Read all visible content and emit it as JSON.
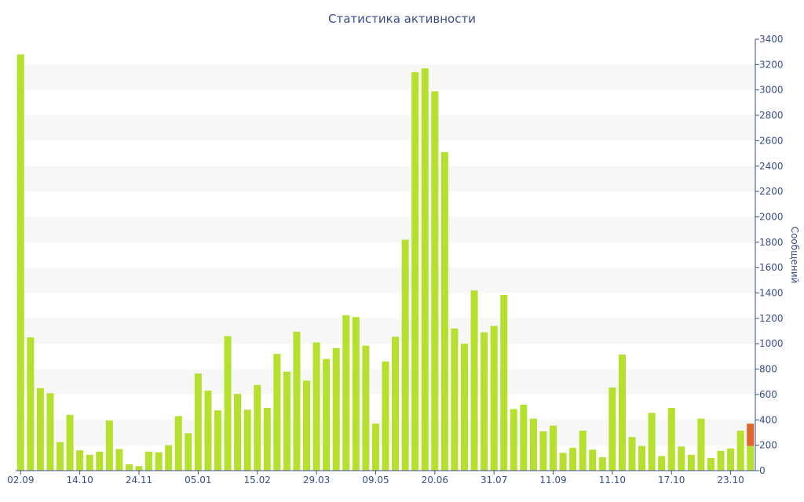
{
  "chart_data": {
    "type": "bar",
    "title": "Статистика активности",
    "ylabel": "Сообщений",
    "y_axis_side": "right",
    "ylim": [
      0,
      3400
    ],
    "y_ticks": [
      0,
      200,
      400,
      600,
      800,
      1000,
      1200,
      1400,
      1600,
      1800,
      2000,
      2200,
      2400,
      2600,
      2800,
      3000,
      3200,
      3400
    ],
    "x_tick_labels": [
      {
        "label": "02.09",
        "index": 0
      },
      {
        "label": "14.10",
        "index": 6
      },
      {
        "label": "24.11",
        "index": 12
      },
      {
        "label": "05.01",
        "index": 18
      },
      {
        "label": "15.02",
        "index": 24
      },
      {
        "label": "29.03",
        "index": 30
      },
      {
        "label": "09.05",
        "index": 36
      },
      {
        "label": "20.06",
        "index": 42
      },
      {
        "label": "31.07",
        "index": 48
      },
      {
        "label": "11.09",
        "index": 54
      },
      {
        "label": "11.10",
        "index": 60
      },
      {
        "label": "17.10",
        "index": 66
      },
      {
        "label": "23.10",
        "index": 72
      }
    ],
    "grid": "alternating horizontal bands",
    "colors": {
      "bar": "#b5e02e",
      "highlight": "#e0642e",
      "band": "#f7f7f7",
      "axis": "#3b4d8c"
    },
    "series": [
      {
        "values": [
          3280,
          1050,
          650,
          610,
          225,
          440,
          160,
          125,
          150,
          395,
          170,
          50,
          35,
          150,
          145,
          200,
          430,
          295,
          765,
          630,
          475,
          1060,
          605,
          480,
          675,
          495,
          920,
          780,
          1095,
          710,
          1010,
          880,
          965,
          1225,
          1210,
          985,
          370,
          860,
          1055,
          1820,
          3140,
          3170,
          2990,
          2510,
          1120,
          1000,
          1420,
          1090,
          1140,
          1385,
          485,
          520,
          410,
          310,
          355,
          140,
          180,
          315,
          165,
          105,
          655,
          915,
          265,
          195,
          455,
          115,
          495,
          190,
          125,
          410,
          100,
          155,
          175,
          315,
          195
        ]
      },
      {
        "values": [
          0,
          0,
          0,
          0,
          0,
          0,
          0,
          0,
          0,
          0,
          0,
          0,
          0,
          0,
          0,
          0,
          0,
          0,
          0,
          0,
          0,
          0,
          0,
          0,
          0,
          0,
          0,
          0,
          0,
          0,
          0,
          0,
          0,
          0,
          0,
          0,
          0,
          0,
          0,
          0,
          0,
          0,
          0,
          0,
          0,
          0,
          0,
          0,
          0,
          0,
          0,
          0,
          0,
          0,
          0,
          0,
          0,
          0,
          0,
          0,
          0,
          0,
          0,
          0,
          0,
          0,
          0,
          0,
          0,
          0,
          0,
          0,
          0,
          0,
          175
        ]
      }
    ]
  }
}
